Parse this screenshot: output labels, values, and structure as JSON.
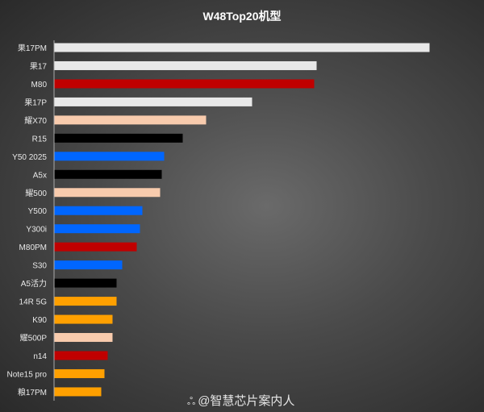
{
  "chart_data": {
    "type": "bar",
    "orientation": "horizontal",
    "title": "W48Top20机型",
    "categories": [
      "果17PM",
      "果17",
      "M80",
      "果17P",
      "耀X70",
      "R15",
      "Y50 2025",
      "A5x",
      "耀500",
      "Y500",
      "Y300i",
      "M80PM",
      "S30",
      "A5活力",
      "14R 5G",
      "K90",
      "耀500P",
      "n14",
      "Note15 pro",
      "粮17PM"
    ],
    "values": [
      465,
      325,
      322,
      245,
      188,
      159,
      136,
      133,
      131,
      109,
      106,
      102,
      84,
      77,
      77,
      72,
      72,
      66,
      62,
      58
    ],
    "colors": [
      "#e8e8e8",
      "#e8e8e8",
      "#c00000",
      "#e8e8e8",
      "#f8cbad",
      "#000000",
      "#0066ff",
      "#000000",
      "#f8cbad",
      "#0066ff",
      "#0066ff",
      "#c00000",
      "#0066ff",
      "#000000",
      "#ffa000",
      "#ffa000",
      "#f8cbad",
      "#c00000",
      "#ffa000",
      "#ffa000"
    ],
    "grid": false,
    "xaxis_labels": false
  },
  "watermark": {
    "icon": "weibo-icon",
    "text": "@智慧芯片案内人"
  }
}
